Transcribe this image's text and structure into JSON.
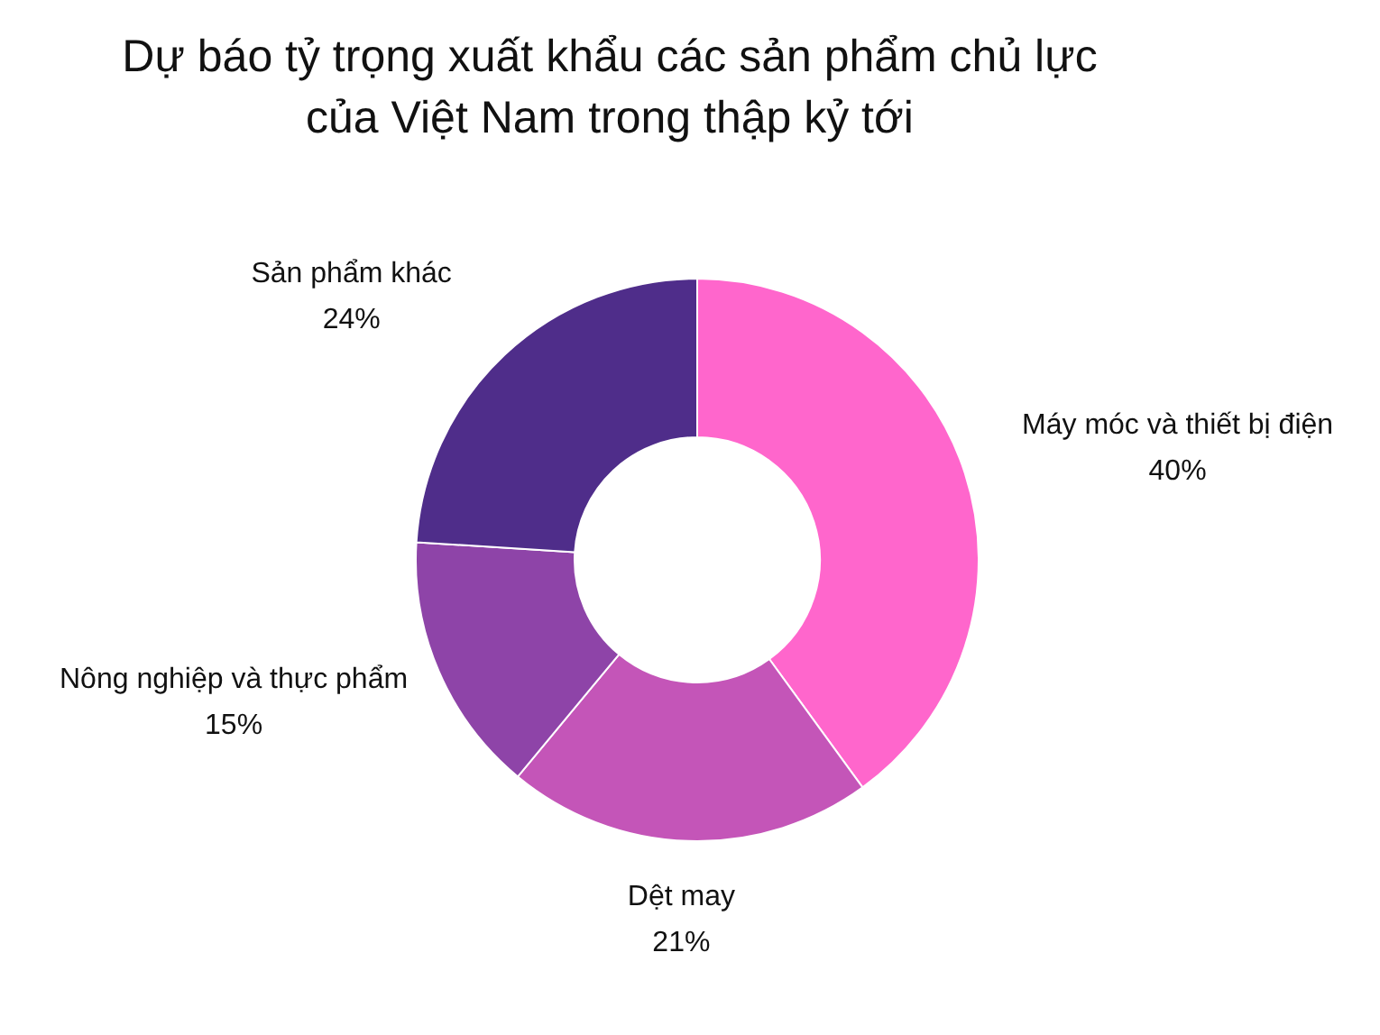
{
  "chart_data": {
    "type": "donut",
    "title": "Dự báo tỷ trọng xuất khẩu các sản phẩm chủ lực\ncủa Việt Nam trong thập kỷ tới",
    "categories": [
      "Máy móc và thiết bị điện",
      "Dệt may",
      "Nông nghiệp và thực phẩm",
      "Sản phẩm khác"
    ],
    "values": [
      40,
      21,
      15,
      24
    ],
    "value_labels": [
      "40%",
      "21%",
      "15%",
      "24%"
    ],
    "colors": [
      "#ff66cc",
      "#c455b8",
      "#8e44a8",
      "#4f2d8a"
    ]
  }
}
